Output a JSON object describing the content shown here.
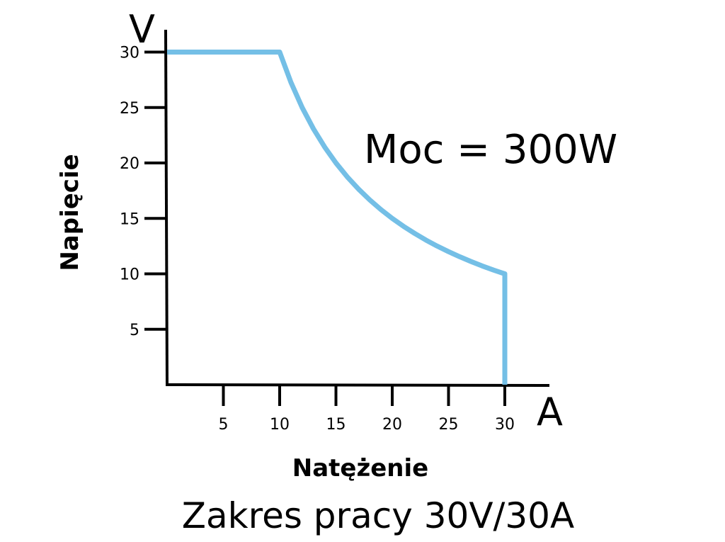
{
  "chart_data": {
    "type": "line",
    "title": "Zakres pracy 30V/30A",
    "xlabel": "Natężenie",
    "ylabel": "Napięcie",
    "x_unit": "A",
    "y_unit": "V",
    "annotation": "Moc = 300W",
    "xlim": [
      0,
      34
    ],
    "ylim": [
      0,
      30
    ],
    "x_ticks": [
      5,
      10,
      15,
      20,
      25,
      30
    ],
    "y_ticks": [
      5,
      10,
      15,
      20,
      25,
      30
    ],
    "x_tick_labels": [
      "5",
      "10",
      "15",
      "20",
      "25",
      "30"
    ],
    "y_tick_labels": [
      "5",
      "10",
      "15",
      "20",
      "25",
      "30"
    ],
    "grid": false,
    "line_color": "#74bfe6",
    "series": [
      {
        "x": [
          0,
          10,
          11,
          12,
          13,
          14,
          15,
          16,
          17,
          18,
          19,
          20,
          21,
          22,
          23,
          24,
          25,
          26,
          27,
          28,
          29,
          30,
          30
        ],
        "y": [
          30,
          30,
          27.27,
          25,
          23.08,
          21.43,
          20,
          18.75,
          17.65,
          16.67,
          15.79,
          15,
          14.29,
          13.64,
          13.04,
          12.5,
          12,
          11.54,
          11.11,
          10.71,
          10.34,
          10,
          0
        ]
      }
    ]
  }
}
